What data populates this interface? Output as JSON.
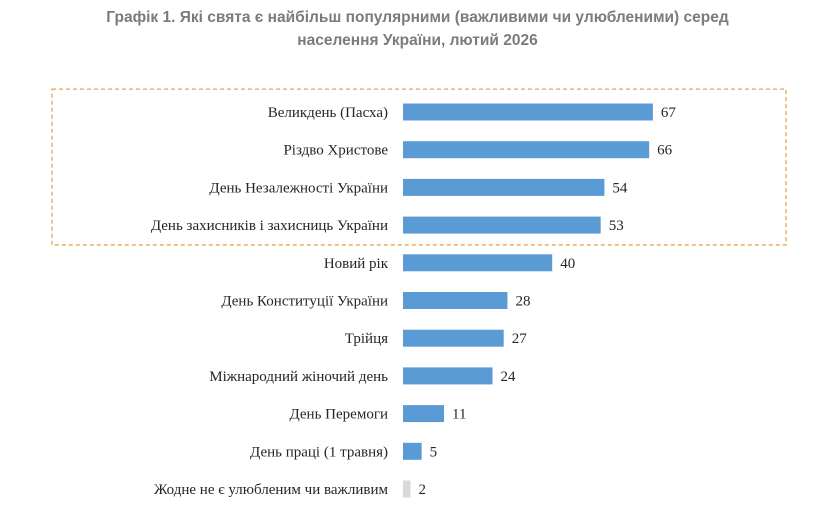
{
  "chart_data": {
    "type": "bar",
    "orientation": "horizontal",
    "title": "Графік 1. Які свята є найбільш популярними (важливими чи улюбленими) серед населення України, лютий 2026",
    "title_lines": [
      "Графік 1. Які свята є найбільш популярними (важливими чи улюбленими) серед",
      "населення України, лютий 2026"
    ],
    "categories": [
      "Великдень (Пасха)",
      "Різдво Христове",
      "День Незалежності України",
      "День захисників і захисниць України",
      "Новий рік",
      "День Конституції України",
      "Трійця",
      "Міжнародний жіночий день",
      "День Перемоги",
      "День праці (1 травня)",
      "Жодне не є улюбленим чи важливим"
    ],
    "values": [
      67,
      66,
      54,
      53,
      40,
      28,
      27,
      24,
      11,
      5,
      2
    ],
    "highlight": {
      "top_n": 4,
      "style": "dashed-box",
      "color": "#e8a34f"
    },
    "bar_color": "#5b9bd5",
    "last_bar_color": "#d9d9d9",
    "label_color": "#262626",
    "title_color": "#7b7b7b",
    "xlabel": "",
    "ylabel": "",
    "xlim": [
      0,
      100
    ],
    "grid": false,
    "legend": "none",
    "data_labels": true
  }
}
